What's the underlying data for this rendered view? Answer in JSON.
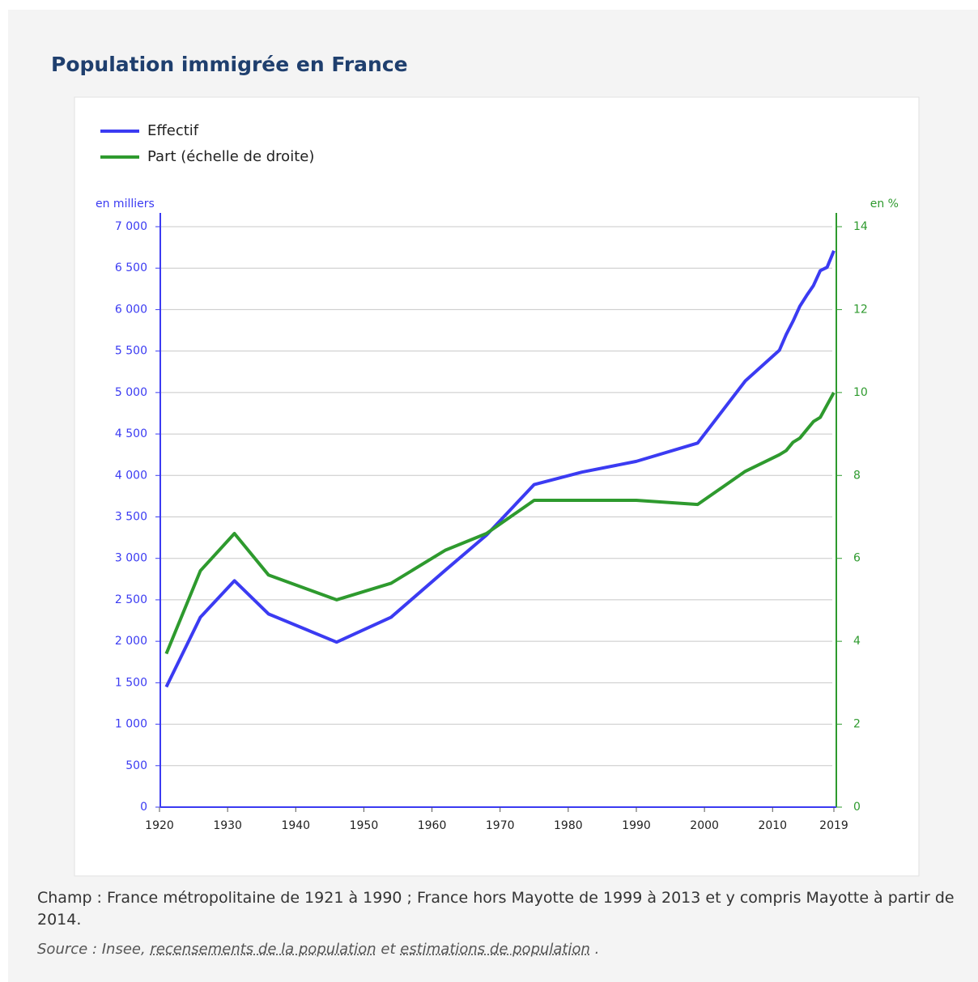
{
  "chart_data": {
    "type": "line",
    "title": "Population immigrée en France",
    "ylabel": "en milliers",
    "y2label": "en %",
    "x": [
      1921,
      1926,
      1931,
      1936,
      1946,
      1954,
      1962,
      1968,
      1975,
      1982,
      1990,
      1999,
      2006,
      2011,
      2012,
      2013,
      2014,
      2015,
      2016,
      2017,
      2018,
      2019
    ],
    "series": [
      {
        "name": "Effectif",
        "color": "#3b3bf2",
        "values": [
          1450,
          2290,
          2730,
          2330,
          1990,
          2290,
          2860,
          3280,
          3890,
          4040,
          4170,
          4390,
          5140,
          5510,
          5700,
          5860,
          6040,
          6170,
          6290,
          6470,
          6510,
          6710
        ]
      },
      {
        "name": "Part (échelle de droite)",
        "color": "#2e9a2e",
        "axis": "y2",
        "values": [
          3.7,
          5.7,
          6.6,
          5.6,
          5.0,
          5.4,
          6.2,
          6.6,
          7.4,
          7.4,
          7.4,
          7.3,
          8.1,
          8.5,
          8.6,
          8.8,
          8.9,
          9.1,
          9.3,
          9.4,
          9.7,
          10.0
        ]
      }
    ],
    "xlim": [
      1920,
      2019
    ],
    "xticks": [
      1920,
      1930,
      1940,
      1950,
      1960,
      1970,
      1980,
      1990,
      2000,
      2010,
      2019
    ],
    "ylim": [
      0,
      7000
    ],
    "yticks": [
      0,
      500,
      {
        "value": 1000,
        "label": "1 000"
      },
      {
        "value": 1500,
        "label": "1 500"
      },
      {
        "value": 2000,
        "label": "2 000"
      },
      {
        "value": 2500,
        "label": "2 500"
      },
      {
        "value": 3000,
        "label": "3 000"
      },
      {
        "value": 3500,
        "label": "3 500"
      },
      {
        "value": 4000,
        "label": "4 000"
      },
      {
        "value": 4500,
        "label": "4 500"
      },
      {
        "value": 5000,
        "label": "5 000"
      },
      {
        "value": 5500,
        "label": "5 500"
      },
      {
        "value": 6000,
        "label": "6 000"
      },
      {
        "value": 6500,
        "label": "6 500"
      },
      {
        "value": 7000,
        "label": "7 000"
      }
    ],
    "y2lim": [
      0,
      14
    ],
    "y2ticks": [
      0,
      2,
      4,
      6,
      8,
      10,
      12,
      14
    ],
    "grid": true,
    "legend": "top-left"
  },
  "footer": {
    "note": "Champ : France métropolitaine de 1921 à 1990 ; France hors Mayotte de 1999 à 2013 et y compris Mayotte à partir de 2014.",
    "source": [
      "Source : Insee, ",
      "recensements de la population",
      " et ",
      "estimations de population",
      " ."
    ]
  }
}
